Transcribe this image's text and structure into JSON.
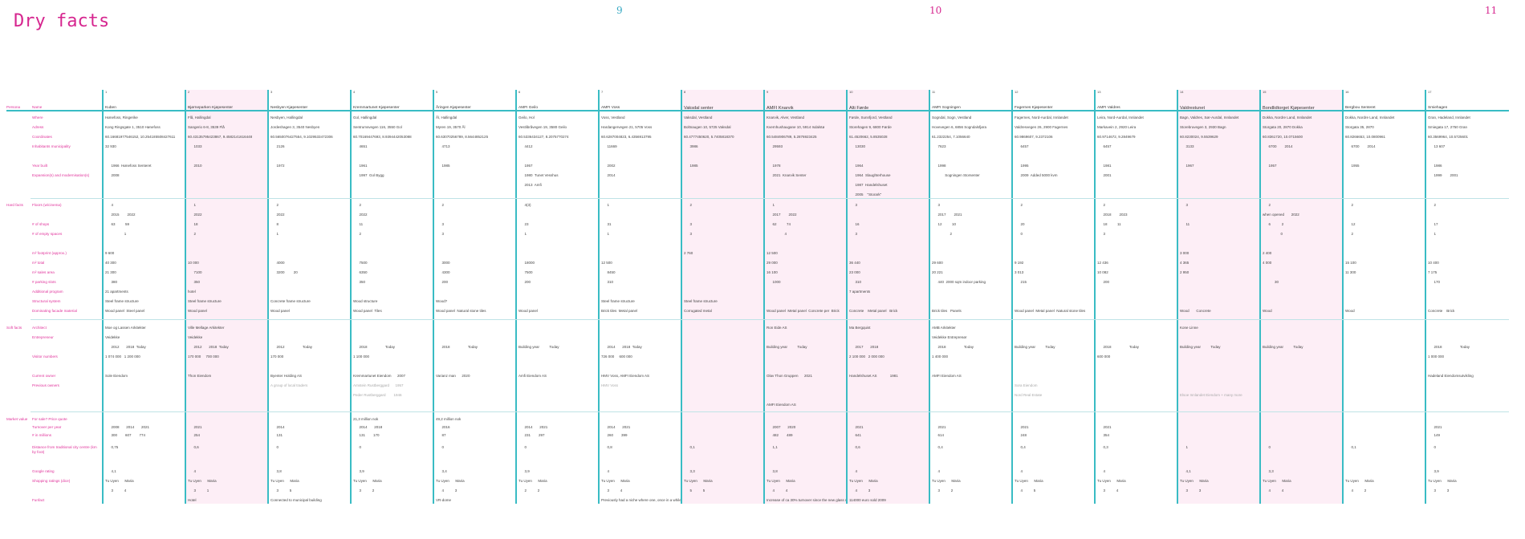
{
  "page": {
    "title": "Dry facts",
    "page_numbers": [
      "9",
      "10",
      "11"
    ]
  },
  "sections": {
    "persona": "Persona",
    "hard": "Hard facts",
    "soft": "Soft facts",
    "market": "Market value"
  },
  "labels": {
    "name": "Name",
    "where": "Where",
    "address": "Adress",
    "coords": "Coordinates",
    "inhab": "Inhabitants municipality",
    "built": "Year built",
    "exp": "Expansion(s) and modernisation(s)",
    "floors": "Floors (w/cinema)",
    "shops": "# of shops",
    "empty": "# of empty spaces",
    "foot": "m² footprint (approx.)",
    "total": "m² total",
    "sales": "m² sales area",
    "parking": "# parking slots",
    "addprog": "Additional program",
    "struct": "Structural system",
    "facade": "Dominating facade material",
    "arch": "Architect",
    "entre": "Entrepreneur",
    "visit": "Visitor numbers",
    "owner": "Current owner",
    "prev": "Previous owners",
    "sale": "For sale? Price quote",
    "turn": "Turnover per year",
    "kr": "# in millions",
    "dist": "Distance from traditional city centre (km by foot)",
    "google": "Google rating",
    "dice": "Shopping ratings (dice)",
    "fun": "Funfact"
  },
  "columns": [
    {
      "num": "1",
      "name": "Kuben",
      "cells": {
        "where": "Hønefoss, Ringerike",
        "address": "Kong Ringsgate 1, 3510 Hønefoss",
        "coords": "60.16681977546152, 10.254185508427611",
        "inhab": "32 930",
        "built": "      1966  Hønefoss Senteret",
        "exp": "      2008",
        "floors": "      4",
        "fyears": "      2015        2022",
        "shops": "      63          59",
        "empty": "                   1",
        "foot": "9 600",
        "total": "40 300",
        "sales": "21 300",
        "parking": "      380",
        "addprog": "21 apartments",
        "struct": "Steel frame structure",
        "facade": "Wood panel  Steel panel",
        "arch": "Moe og Lassen Arkitekter",
        "entre": "Veidekke",
        "vyears": "      2012       2018  Today",
        "visit": "1 074 000   1 200 000",
        "owner": "Sole Eiendom",
        "tyears": "      2008       2014       2021",
        "kr": "      300        607        774",
        "dist": "      0,75",
        "google": "      4,1",
        "dice": "Tu Uyen      Maria",
        "dicev": "      3           4"
      }
    },
    {
      "num": "2",
      "name": "Bjørneparken Kjøpesenter",
      "pink": true,
      "cells": {
        "where": "Flå, Hallingdal",
        "address": "Sangerio 6-8, 3539 Flå",
        "coords": "60.43135795423867, 9.4582141616448",
        "inhab": "      1033",
        "built": "      2010",
        "floors": "      1",
        "fyears": "      2022",
        "shops": "      18",
        "empty": "      2",
        "total": "10 000",
        "sales": "      7100",
        "parking": "      350",
        "addprog": "hotel",
        "struct": "Steel frame structure",
        "facade": "Wood panel",
        "arch": "Ville Mellage Arkitekter",
        "entre": "Veidekke",
        "vyears": "      2012       2018  Today",
        "visit": "170 000     700 000",
        "owner": "Thon Eiendom",
        "tyears": "      2021",
        "kr": "      254",
        "dist": "      0,6",
        "google": "      4",
        "dice": "Tu Uyen      Maria",
        "dicev": "      3           1",
        "fun": "Hotel"
      }
    },
    {
      "num": "3",
      "name": "Nesbyen Kjøpesenter",
      "cells": {
        "where": "Nesbyen, Hallingdal",
        "address": "Jordeshagen 3, 3540 Nesbyen",
        "coords": "60.5650076427554, 9.1029533472306",
        "inhab": "      2126",
        "built": "      1972",
        "floors": "      2",
        "fyears": "      2022",
        "shops": "      8",
        "empty": "      1",
        "total": "      4000",
        "sales": "      3200         20",
        "struct": "Concrete frame structure",
        "facade": "Wood panel",
        "vyears": "      2012                  Today",
        "visit": "170 000",
        "owner": "Byenter Holding AS",
        "prev": "A group of local traders",
        "tyears": "      2014",
        "kr": "      131",
        "dist": "      0",
        "google": "      3,8",
        "dice": "Tu Uyen      Maria",
        "dicev": "      3           5",
        "fun": "Connected to municipal building"
      }
    },
    {
      "num": "4",
      "name": "Kremmartunet Kjøpesenter",
      "cells": {
        "where": "Gol, Hallingdal",
        "address": "Sentrumsvegen 116, 3550 Gol",
        "coords": "60.70169447693, 8.9394442053088",
        "inhab": "      4651",
        "built": "      1961",
        "exp": "      1997  Gol Bygg",
        "floors": "      2",
        "fyears": "      2022",
        "shops": "      11",
        "empty": "      2",
        "total": "      7500",
        "sales": "      6350",
        "parking": "      350",
        "struct": "Wood structure",
        "facade": "Wood panel  Tiles",
        "vyears": "      2018                  Today",
        "visit": "1 100 000",
        "owner": "Kremmartunet Eiendom      2007",
        "prev": "Arnstein Rustberggard      1957",
        "prev2": "Peder Rustberggard        1946",
        "sale": "21,3 million nok",
        "tyears": "      2014       2018",
        "kr": "      131        170",
        "dist": "      0",
        "google": "      3,9",
        "dice": "Tu Uyen      Maria",
        "dicev": "      3           2"
      }
    },
    {
      "num": "5",
      "name": "Åringen Kjøpesenter",
      "cells": {
        "where": "Ål, Hallingdal",
        "address": "Myren 19, 3570 Ål",
        "coords": "60.63070256789, 8.5644852125",
        "inhab": "      4713",
        "built": "      1985",
        "floors": "      2",
        "shops": "      3",
        "empty": "      3",
        "total": "      3000",
        "sales": "      4300",
        "parking": "      200",
        "struct": "Wood?",
        "facade": "Wood panel  Natural stone tiles",
        "vyears": "      2018                  Today",
        "owner": "Varianz man      2020",
        "sale": "49,2 million nok",
        "tyears": "      2016",
        "kr": "      87",
        "dist": "      0",
        "google": "      3,4",
        "dice": "Tu Uyen      Maria",
        "dicev": "      4           3",
        "fun": "VR-dome"
      }
    },
    {
      "num": "6",
      "name": "AMFI Geilo",
      "cells": {
        "where": "Geilo, Hol",
        "address": "Vestlibråvegen 19, 3580 Geilo",
        "coords": "60.5336434127, 8.2075770274",
        "inhab": "      4412",
        "built": "      1957",
        "exp": "      1980  Tunet Vesshus",
        "exp2": "      2013  Amfi",
        "floors": "      4(3)",
        "shops": "      23",
        "empty": "      1",
        "total": "      18000",
        "sales": "      7500",
        "parking": "      200",
        "facade": "Wood panel",
        "vyears": "Building year          Today",
        "owner": "Amfi Eiendom AS",
        "tyears": "      2014       2021",
        "kr": "      231        297",
        "dist": "      0",
        "google": "      3,9",
        "dice": "Tu Uyen      Maria",
        "dicev": "      2           2"
      }
    },
    {
      "num": "7",
      "name": "AMFI Voss",
      "cells": {
        "where": "Voss, Vestland",
        "address": "Hardangervegen 21, 5705 Voss",
        "coords": "60.6287004823, 6.4356913795",
        "inhab": "      11669",
        "built": "      2002",
        "exp": "      2014",
        "floors": "      1",
        "shops": "      31",
        "empty": "      1",
        "total": "12 500",
        "sales": "      8450",
        "parking": "      310",
        "struct": "Steel frame structure",
        "facade": "Brick tiles  Metal panel",
        "vyears": "      2014       2018  Today",
        "visit": "726 000     600 000",
        "owner": "HMV Voss, AMFI Eiendom AS",
        "prev": "HMV Voss",
        "tyears": "      2014       2021",
        "kr": "      260        399",
        "dist": "      0,8",
        "google": "      4",
        "dice": "Tu Uyen      Maria",
        "dicev": "      3           4",
        "fun": "Previously had a niche where one, once in a while, could talk to a priest"
      }
    },
    {
      "num": "8",
      "name": "Vaksdal senter",
      "pink": true,
      "big": true,
      "cells": {
        "where": "Vaksdal, Vestland",
        "address": "Boltnaugen 10, 5725 Vaksdal",
        "coords": "60.4777450620, 5.7405818370",
        "inhab": "      3986",
        "built": "      1985",
        "floors": "      2",
        "shops": "      3",
        "empty": "      3",
        "foot": "2 760",
        "struct": "Steel frame structure",
        "facade": "Corrugated metal",
        "dist": "      0,1",
        "google": "      3,3",
        "dice": "Tu Uyen      Maria",
        "dicev": "      5           5"
      }
    },
    {
      "num": "9",
      "name": "AMFI Knarvik",
      "pink": true,
      "big": true,
      "cells": {
        "where": "Knarvik, Alver, Vestland",
        "address": "Kvernhushaugane 10, 5914 Isdalstø",
        "coords": "60.5484906789, 5.2876923425",
        "inhab": "      29593",
        "built": "      1978",
        "exp": "      2021  Knarvik Senter",
        "floors": "      1",
        "fyears": "      2017        2022",
        "shops": "      62          74",
        "empty": "                  4",
        "foot": "12 500",
        "total": "29 000",
        "sales": "16 100",
        "parking": "      1000",
        "facade": "Wood panel  Metal panel  Concrete per  Brick",
        "arch": "Ron Eide AS",
        "vyears": "Building year          Today",
        "owner": "Olav Thon Gruppen      2021",
        "prev3": "AMFI Eiendom AS",
        "tyears": "      2007       2020",
        "kr": "      482        489",
        "dist": "      1,1",
        "google": "      3,8",
        "dice": "Tu Uyen      Maria",
        "dicev": "      4           4",
        "fun": "Increase of ca 30% turnover since the new glass roof"
      }
    },
    {
      "num": "10",
      "name": "Alti Førde",
      "pink": true,
      "big": true,
      "cells": {
        "where": "Førde, Sunnfjord, Vestland",
        "address": "Storehagen 9, 6800 Førde",
        "coords": "61.4520662, 5.8535028",
        "inhab": "      13030",
        "built": "      1964",
        "exp": "      1964  Slaughterhouse",
        "exp2": "      1987  Handelshuset",
        "exp3": "      2005    \"Storark\"",
        "floors": "      3",
        "shops": "      16",
        "empty": "      3",
        "total": "36 440",
        "sales": "23 000",
        "parking": "      310",
        "addprog": "7 apartments",
        "facade": "Concrete    Metal panel   Brick",
        "arch": "Ma Bergquist",
        "vyears": "      2017       2018",
        "visit": "2 100 000   2 000 000",
        "owner": "Handelshuset AS             1981",
        "tyears": "      2021",
        "kr": "      641",
        "dist": "      0,6",
        "google": "      4",
        "dice": "Tu Uyen      Maria",
        "dicev": "      4           3",
        "fun": "114000 euro sold 2009"
      }
    },
    {
      "num": "11",
      "name": "AMFI Sogningen",
      "cells": {
        "where": "Sogndal, Sogn, Vestland",
        "address": "Hovevegen 6, 6856 Sogndalsfjøra",
        "coords": "61.2322254, 7.1056640",
        "inhab": "      7623",
        "built": "      1998",
        "exp": "             Sogningen Storsenter",
        "floors": "      3",
        "fyears": "      2017        2021",
        "shops": "      12          10",
        "empty": "                  2",
        "total": "29 600",
        "sales": "20 221",
        "parking": "      440  2000 sqm indoor parking",
        "facade": "Brick tiles   Panels",
        "arch": "AMB Arkitekter",
        "entre": "Veidekke Entreprenør",
        "vyears": "      2018                  Today",
        "visit": "1 400 000",
        "owner": "AMFI Eiendom AS",
        "tyears": "      2021",
        "kr": "      614",
        "dist": "      0,4",
        "google": "      4",
        "dice": "Tu Uyen      Maria",
        "dicev": "      3           2"
      }
    },
    {
      "num": "12",
      "name": "Fagernes Kjøpesenter",
      "cells": {
        "where": "Fagernes, Nord-Aurdal, Innlandet",
        "address": "Valdresvegen 26, 2900 Fagernes",
        "coords": "60.9869607, 9.2372106",
        "inhab": "      6457",
        "built": "      1995",
        "exp": "      2009  Added 5000 kvm",
        "floors": "      2",
        "shops": "      20",
        "empty": "      0",
        "total": "9 192",
        "sales": "3 013",
        "parking": "      215",
        "facade": "Wood panel  Metal panel  Natural stone tiles",
        "vyears": "Building year          Today",
        "prev": "Sora Eiendom",
        "prev2": "Nord Real Estate",
        "tyears": "      2021",
        "kr": "      248",
        "dist": "      0,4",
        "google": "      4",
        "dice": "Tu Uyen      Maria",
        "dicev": "      4           5"
      }
    },
    {
      "num": "13",
      "name": "AMFI Valdres",
      "cells": {
        "where": "Leira, Nord-Aurdal, Innlandet",
        "address": "Markavein 2, 2920 Leira",
        "coords": "60.9714672, 9.2849679",
        "inhab": "      6457",
        "built": "      1981",
        "exp": "      2001",
        "floors": "      2",
        "fyears": "      2018        2023",
        "shops": "      18          11",
        "empty": "      3",
        "total": "12 436",
        "sales": "10 082",
        "parking": "      200",
        "vyears": "      2018                  Today",
        "visit": "600 000",
        "tyears": "      2021",
        "kr": "      354",
        "dist": "      0,3",
        "google": "      4",
        "dice": "Tu Uyen      Maria",
        "dicev": "      3           4"
      }
    },
    {
      "num": "14",
      "name": "Valdrestunet",
      "pink": true,
      "big": true,
      "cells": {
        "where": "Bagn, Valdres, Sør-Aurdal, Innlandet",
        "address": "Storebruvegen 3, 2930 Bagn",
        "coords": "60.8230024, 9.5539629",
        "inhab": "      3133",
        "built": "      1967",
        "floors": "      3",
        "shops": "      11",
        "foot": "3 000",
        "total": "4 365",
        "sales": "2 950",
        "facade": "Wood       Concrete",
        "arch": "Kone Linne",
        "vyears": "Building year          Today",
        "prev2": "Elsoe Innlandet Eiendom + many more",
        "dist": "      1",
        "google": "      4,1",
        "dice": "Tu Uyen      Maria",
        "dicev": "      3           3"
      }
    },
    {
      "num": "15",
      "name": "Bondlidtorget Kjøpesenter",
      "pink": true,
      "big": true,
      "cells": {
        "where": "Dokka, Nordre Land, Innlandet",
        "address": "Storgata 20, 2870 Dokka",
        "coords": "60.8361720, 10.0715600",
        "inhab": "      6700        2014",
        "built": "      1957",
        "floors": "      2",
        "fyears": "when opened       2022",
        "shops": "      6           2",
        "empty": "                  0",
        "foot": "2 400",
        "total": "4 000",
        "parking": "            30",
        "facade": "Wood",
        "vyears": "Building year          Today",
        "dist": "      0",
        "google": "      3,3",
        "dice": "Tu Uyen      Maria",
        "dicev": "      4           4"
      }
    },
    {
      "num": "16",
      "name": "Bergbou Senteret",
      "cells": {
        "where": "Dokka, Nordre Land, Innlandet",
        "address": "Storgata 35, 2870",
        "coords": "60.8266653, 10.0800961",
        "inhab": "      6700        2014",
        "built": "      1955",
        "floors": "      2",
        "shops": "      12",
        "empty": "      2",
        "total": "15 100",
        "sales": "11 300",
        "facade": "Wood",
        "dist": "      0,1",
        "dice": "Tu Uyen      Maria",
        "dicev": "      4           2"
      }
    },
    {
      "num": "17",
      "name": "Smiehagen",
      "cells": {
        "where": "Gran, Hadeland, Innlandet",
        "address": "Smiegata 17, 2750 Gran",
        "coords": "60.3569964, 10.5725601",
        "inhab": "      13 607",
        "built": "      1986",
        "exp": "      1999        2001",
        "floors": "      2",
        "shops": "      17",
        "empty": "      1",
        "total": "10 400",
        "sales": "7 175",
        "parking": "      170",
        "facade": "Concrete    Brick",
        "vyears": "      2018                  Today",
        "visit": "1 000 000",
        "owner": "Hadeland Eiendomsutvikling",
        "tyears": "      2021",
        "kr": "      149",
        "dist": "      0",
        "google": "      3,9",
        "dice": "Tu Uyen      Maria",
        "dicev": "      3           3"
      }
    }
  ]
}
